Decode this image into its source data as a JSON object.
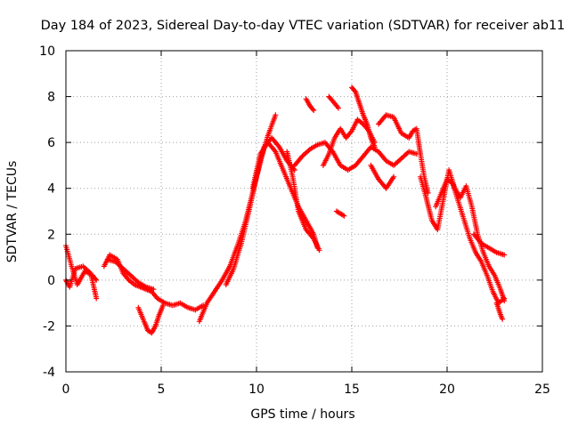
{
  "chart_data": {
    "type": "scatter",
    "title": "Day 184 of 2023, Sidereal Day-to-day VTEC variation (SDTVAR) for receiver ab11",
    "xlabel": "GPS time / hours",
    "ylabel": "SDTVAR / TECUs",
    "xlim": [
      0,
      25
    ],
    "ylim": [
      -4,
      10
    ],
    "xticks": [
      0,
      5,
      10,
      15,
      20,
      25
    ],
    "yticks": [
      -4,
      -2,
      0,
      2,
      4,
      6,
      8,
      10
    ],
    "grid": true,
    "marker": "+",
    "series": [
      {
        "name": "SDTVAR",
        "color": "#ff0000",
        "tracks": [
          {
            "x": [
              0.0,
              0.3,
              0.6,
              1.0,
              1.4,
              1.6
            ],
            "y": [
              1.5,
              0.6,
              -0.2,
              0.4,
              0.2,
              0.0
            ]
          },
          {
            "x": [
              0.0,
              0.2,
              0.5,
              0.9,
              1.3,
              1.6
            ],
            "y": [
              0.0,
              -0.3,
              0.5,
              0.6,
              0.3,
              -0.8
            ]
          },
          {
            "x": [
              2.0,
              2.3,
              2.7,
              3.0,
              3.3,
              3.6,
              3.9,
              4.2,
              4.5,
              4.8,
              5.2,
              5.6,
              6.0,
              6.4,
              6.8,
              7.2
            ],
            "y": [
              0.6,
              1.1,
              0.9,
              0.3,
              0.0,
              -0.2,
              -0.3,
              -0.4,
              -0.5,
              -0.8,
              -1.0,
              -1.1,
              -1.0,
              -1.2,
              -1.3,
              -1.1
            ]
          },
          {
            "x": [
              2.2,
              2.6,
              3.0,
              3.4,
              3.8,
              4.2,
              4.6
            ],
            "y": [
              0.9,
              0.8,
              0.5,
              0.2,
              -0.1,
              -0.3,
              -0.4
            ]
          },
          {
            "x": [
              3.8,
              4.1,
              4.3,
              4.5,
              4.7,
              4.9,
              5.1
            ],
            "y": [
              -1.2,
              -1.8,
              -2.2,
              -2.3,
              -2.0,
              -1.5,
              -1.1
            ]
          },
          {
            "x": [
              7.0,
              7.4,
              7.8,
              8.2,
              8.6,
              9.0,
              9.4,
              9.8,
              10.2,
              10.6,
              11.0
            ],
            "y": [
              -1.8,
              -1.0,
              -0.5,
              0.0,
              0.6,
              1.5,
              2.5,
              3.8,
              5.2,
              6.3,
              7.2
            ]
          },
          {
            "x": [
              8.4,
              8.8,
              9.2,
              9.6,
              10.0,
              10.4,
              10.8,
              11.2,
              11.6,
              12.0
            ],
            "y": [
              -0.2,
              0.5,
              1.6,
              3.0,
              4.5,
              5.8,
              6.2,
              5.8,
              5.2,
              4.8
            ]
          },
          {
            "x": [
              9.8,
              10.2,
              10.6,
              11.0,
              11.4,
              11.8,
              12.2,
              12.6,
              13.0,
              13.2
            ],
            "y": [
              4.0,
              5.5,
              6.0,
              5.6,
              4.8,
              4.0,
              3.2,
              2.6,
              2.0,
              1.4
            ]
          },
          {
            "x": [
              11.6,
              11.9,
              12.2,
              12.6,
              13.0,
              13.3
            ],
            "y": [
              5.6,
              4.5,
              3.0,
              2.2,
              1.8,
              1.3
            ]
          },
          {
            "x": [
              12.0,
              12.4,
              12.8,
              13.2,
              13.6,
              14.0,
              14.4,
              14.8,
              15.2,
              15.6,
              16.0,
              16.4,
              16.8,
              17.2,
              17.6,
              18.0,
              18.4
            ],
            "y": [
              5.0,
              5.4,
              5.7,
              5.9,
              6.0,
              5.6,
              5.0,
              4.8,
              5.0,
              5.4,
              5.8,
              5.6,
              5.2,
              5.0,
              5.3,
              5.6,
              5.5
            ]
          },
          {
            "x": [
              13.5,
              13.8,
              14.1,
              14.4,
              14.7,
              15.0,
              15.3,
              15.6,
              15.9,
              16.2
            ],
            "y": [
              5.0,
              5.5,
              6.2,
              6.6,
              6.2,
              6.5,
              7.0,
              6.8,
              6.5,
              6.0
            ]
          },
          {
            "x": [
              12.6,
              12.8,
              13.0
            ],
            "y": [
              7.9,
              7.6,
              7.4
            ]
          },
          {
            "x": [
              13.8,
              14.0,
              14.3
            ],
            "y": [
              8.0,
              7.8,
              7.5
            ]
          },
          {
            "x": [
              15.0,
              15.2,
              15.4,
              15.6,
              15.8,
              16.0,
              16.2
            ],
            "y": [
              8.4,
              8.2,
              7.7,
              7.2,
              6.8,
              6.2,
              5.8
            ]
          },
          {
            "x": [
              16.4,
              16.8,
              17.2,
              17.6,
              18.0,
              18.2,
              18.4,
              18.6,
              18.8,
              19.0
            ],
            "y": [
              6.8,
              7.2,
              7.1,
              6.4,
              6.2,
              6.5,
              6.6,
              5.5,
              4.5,
              3.8
            ]
          },
          {
            "x": [
              16.0,
              16.4,
              16.8,
              17.2
            ],
            "y": [
              5.0,
              4.4,
              4.0,
              4.5
            ]
          },
          {
            "x": [
              18.6,
              18.9,
              19.2,
              19.5,
              19.8,
              20.1,
              20.4,
              20.7,
              21.0,
              21.3,
              21.6,
              21.9,
              22.2,
              22.5,
              22.8,
              23.0
            ],
            "y": [
              4.5,
              3.6,
              2.6,
              2.2,
              3.5,
              4.8,
              4.0,
              3.6,
              4.1,
              3.2,
              2.0,
              1.2,
              0.6,
              0.2,
              -0.4,
              -0.9
            ]
          },
          {
            "x": [
              19.4,
              19.7,
              20.0,
              20.3,
              20.6,
              20.9,
              21.2,
              21.5,
              21.8,
              22.1,
              22.4,
              22.7,
              23.0
            ],
            "y": [
              3.2,
              3.8,
              4.4,
              4.2,
              3.4,
              2.6,
              1.8,
              1.2,
              0.8,
              0.2,
              -0.5,
              -1.0,
              -0.8
            ]
          },
          {
            "x": [
              21.4,
              21.8,
              22.2,
              22.6,
              23.0
            ],
            "y": [
              2.0,
              1.6,
              1.4,
              1.2,
              1.1
            ]
          },
          {
            "x": [
              22.6,
              22.8,
              22.9
            ],
            "y": [
              -1.0,
              -1.5,
              -1.7
            ]
          },
          {
            "x": [
              14.2,
              14.4,
              14.6
            ],
            "y": [
              3.0,
              2.9,
              2.8
            ]
          }
        ]
      }
    ]
  }
}
